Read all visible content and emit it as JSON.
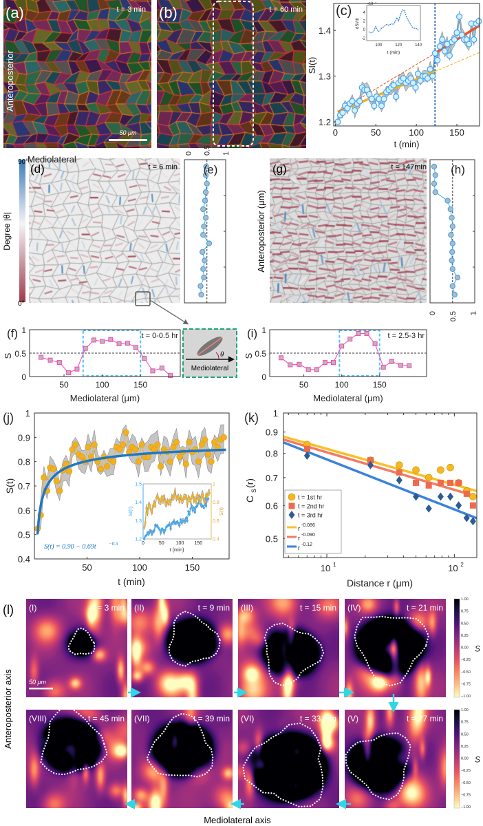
{
  "figure": {
    "a": {
      "label": "(a)",
      "time": "t = 3 min",
      "side_label": "Anteroposterior",
      "scale_bar": "50 μm"
    },
    "b": {
      "label": "(b)",
      "time": "t = 60 min"
    },
    "bottom_label": "Mediolateral",
    "d": {
      "label": "(d)",
      "time": "t = 6 min",
      "cbar_max": "90°",
      "cbar_min": "0°",
      "cbar_label": "Degree |θ|"
    },
    "g": {
      "label": "(g)",
      "time": "t = 147min",
      "ylabel": "Anteroposterior (μm)"
    },
    "inset": {
      "label": "Mediolateral",
      "angle": "θ"
    },
    "colors": {
      "accent_blue": "#3fa9f5",
      "fit_blue": "#1f77c4",
      "orange": "#f2b01e",
      "red": "#e8552a",
      "magenta": "#ff3fb4",
      "navy": "#2b4f86"
    }
  },
  "panel_l": {
    "label": "(l)",
    "ylabel": "Anteroposterior axis",
    "xlabel": "Mediolateral axis",
    "scale_bar": "50 μm",
    "colorbar_label": "S",
    "colorbar_ticks": [
      "1.00",
      "0.75",
      "0.50",
      "0.25",
      "0.00",
      "−0.25",
      "−0.50",
      "−0.75",
      "−1.00"
    ],
    "maps": [
      {
        "label": "(I)",
        "time": "t = 3 min"
      },
      {
        "label": "(II)",
        "time": "t = 9 min"
      },
      {
        "label": "(III)",
        "time": "t = 15 min"
      },
      {
        "label": "(IV)",
        "time": "t = 21 min"
      },
      {
        "label": "(V)",
        "time": "t = 27 min"
      },
      {
        "label": "(VI)",
        "time": "t = 33 min"
      },
      {
        "label": "(VII)",
        "time": "t = 39 min"
      },
      {
        "label": "(VIII)",
        "time": "t = 45 min"
      }
    ]
  },
  "chart_data": [
    {
      "panel": "(c)",
      "type": "line",
      "xlabel": "t (min)",
      "ylabel": "SI(t)",
      "xlim": [
        -2,
        178
      ],
      "ylim": [
        1.191,
        1.459
      ],
      "xticks": [
        "0",
        "50",
        "100",
        "150"
      ],
      "xtick_values": [
        0,
        50,
        100,
        150
      ],
      "yticks": [
        "1.2",
        "1.3",
        "1.4"
      ],
      "ytick_values": [
        1.2,
        1.3,
        1.4
      ],
      "change_point": 123,
      "x": [
        3,
        6,
        9,
        12,
        15,
        18,
        21,
        24,
        27,
        30,
        33,
        36,
        39,
        42,
        45,
        48,
        51,
        54,
        57,
        60,
        63,
        66,
        69,
        72,
        75,
        78,
        81,
        84,
        87,
        90,
        93,
        96,
        99,
        102,
        105,
        108,
        111,
        114,
        117,
        120,
        123,
        126,
        129,
        132,
        135,
        138,
        141,
        144,
        147,
        150,
        153,
        156,
        159,
        162,
        165,
        168,
        171,
        174,
        177
      ],
      "values": [
        1.2,
        1.215,
        1.22,
        1.235,
        1.23,
        1.24,
        1.245,
        1.225,
        1.24,
        1.245,
        1.275,
        1.27,
        1.27,
        1.26,
        1.25,
        1.235,
        1.255,
        1.25,
        1.235,
        1.25,
        1.265,
        1.27,
        1.275,
        1.28,
        1.255,
        1.285,
        1.29,
        1.295,
        1.285,
        1.29,
        1.295,
        1.285,
        1.275,
        1.305,
        1.29,
        1.3,
        1.3,
        1.295,
        1.315,
        1.3,
        1.35,
        1.335,
        1.365,
        1.38,
        1.355,
        1.37,
        1.345,
        1.375,
        1.38,
        1.395,
        1.43,
        1.39,
        1.38,
        1.38,
        1.37,
        1.415,
        1.38,
        1.415,
        1.42
      ],
      "fits": [
        {
          "name": "fit-before",
          "from": [
            3,
            1.222
          ],
          "to": [
            123,
            1.31
          ],
          "color": "#f2b01e",
          "dashed": false
        },
        {
          "name": "fit-before-extrapolated",
          "from": [
            123,
            1.31
          ],
          "to": [
            178,
            1.352
          ],
          "color": "#f2b01e",
          "dashed": true
        },
        {
          "name": "fit-after",
          "from": [
            123,
            1.35
          ],
          "to": [
            178,
            1.411
          ],
          "color": "#e8552a",
          "dashed": false
        },
        {
          "name": "fit-after-extrapolated",
          "from": [
            3,
            1.222
          ],
          "to": [
            123,
            1.35
          ],
          "color": "#e8552a",
          "dashed": true
        }
      ]
    },
    {
      "panel": "(c) inset",
      "type": "line",
      "xlabel": "t (min)",
      "ylabel": "dSI/dt",
      "multiplier": "×10⁻³",
      "xlim": [
        88,
        142
      ],
      "ylim": [
        -2.6,
        5.6
      ],
      "xticks": [
        "100",
        "120",
        "140"
      ],
      "xtick_values": [
        100,
        120,
        140
      ],
      "yticks": [
        "-2",
        "0",
        "2",
        "4"
      ],
      "ytick_values": [
        -2,
        0,
        2,
        4
      ],
      "x": [
        90,
        92,
        95,
        97,
        99,
        100,
        103,
        106,
        108,
        110,
        113,
        115,
        117,
        118,
        120,
        122,
        124,
        126,
        128,
        130,
        132,
        134,
        136,
        138,
        140
      ],
      "values": [
        -0.5,
        -0.8,
        -0.5,
        0.7,
        -0.2,
        -0.5,
        0.3,
        0.8,
        1.2,
        1.0,
        1.3,
        1.2,
        2.0,
        2.8,
        2.0,
        3.5,
        4.6,
        4.3,
        3.0,
        2.0,
        1.2,
        0.5,
        0.3,
        0.2,
        -0.2
      ]
    },
    {
      "panel": "(e)",
      "type": "line",
      "orientation": "vertical",
      "xlim": [
        -0.1,
        1.0
      ],
      "xticks": [
        "0",
        "0.5",
        "1"
      ],
      "xtick_values": [
        0,
        0.5,
        1
      ],
      "reference": 0.5,
      "values": [
        0.48,
        0.47,
        0.5,
        0.47,
        0.45,
        0.4,
        0.47,
        0.42,
        0.4,
        0.56,
        0.38,
        0.44,
        0.4,
        0.42,
        0.33,
        0.35
      ]
    },
    {
      "panel": "(f)",
      "type": "line",
      "annotation": "t = 0-0.5 hr",
      "xlabel": "Mediolateral (μm)",
      "ylabel": "S",
      "xlim": [
        5,
        202
      ],
      "ylim": [
        0,
        1
      ],
      "xticks": [
        "50",
        "100",
        "150"
      ],
      "xtick_values": [
        50,
        100,
        150
      ],
      "yticks": [
        "0",
        "0.5",
        "1"
      ],
      "ytick_values": [
        0,
        0.5,
        1
      ],
      "reference": 0.5,
      "highlight": [
        75,
        150
      ],
      "x": [
        20,
        32,
        44,
        56,
        67,
        78,
        89,
        100,
        111,
        122,
        133,
        144,
        155,
        166,
        178,
        189
      ],
      "values": [
        0.41,
        0.35,
        0.3,
        0.08,
        0.16,
        0.6,
        0.78,
        0.75,
        0.79,
        0.7,
        0.71,
        0.62,
        0.39,
        0.12,
        0.18,
        0.02
      ]
    },
    {
      "panel": "(h)",
      "type": "line",
      "orientation": "vertical",
      "xlim": [
        -0.05,
        1.04
      ],
      "xticks": [
        "0",
        "0.5",
        "1"
      ],
      "xtick_values": [
        0,
        0.5,
        1
      ],
      "reference": 0.5,
      "values": [
        0.05,
        0.08,
        0.05,
        0.08,
        0.38,
        0.45,
        0.48,
        0.5,
        0.46,
        0.5,
        0.49,
        0.48,
        0.5,
        0.62,
        0.5,
        0.55
      ]
    },
    {
      "panel": "(i)",
      "type": "line",
      "annotation": "t = 2.5-3 hr",
      "xlabel": "Mediolateral (μm)",
      "ylabel": "S",
      "xlim": [
        5,
        212
      ],
      "ylim": [
        0,
        1
      ],
      "xticks": [
        "50",
        "100",
        "150"
      ],
      "xtick_values": [
        50,
        100,
        150
      ],
      "yticks": [
        "0",
        "0.5",
        "1"
      ],
      "ytick_values": [
        0,
        0.5,
        1
      ],
      "reference": 0.5,
      "highlight": [
        97,
        150
      ],
      "x": [
        20,
        32,
        44,
        56,
        67,
        78,
        89,
        100,
        111,
        122,
        133,
        144,
        155,
        166,
        178,
        189
      ],
      "values": [
        0.4,
        0.25,
        0.26,
        0.15,
        0.15,
        0.3,
        0.3,
        0.65,
        0.8,
        0.92,
        0.92,
        0.7,
        0.2,
        0.32,
        0.24,
        0.23
      ]
    },
    {
      "panel": "(j)",
      "type": "line",
      "xlabel": "t (min)",
      "ylabel": "S(t)",
      "xlim": [
        0,
        185
      ],
      "ylim": [
        0.4,
        1.0
      ],
      "xticks": [
        "50",
        "100",
        "150"
      ],
      "xtick_values": [
        50,
        100,
        150
      ],
      "yticks": [
        "0.4",
        "0.5",
        "0.6",
        "0.7",
        "0.8",
        "0.9",
        "1"
      ],
      "ytick_values": [
        0.4,
        0.5,
        0.6,
        0.7,
        0.8,
        0.9,
        1.0
      ],
      "fit_label": "S(t) = 0.90 − 0.69t",
      "fit_exponent_label": "−0.5",
      "fit": {
        "a": 0.9,
        "b": 0.69,
        "p": -0.5
      },
      "x": [
        3,
        6,
        9,
        12,
        15,
        18,
        21,
        24,
        27,
        30,
        33,
        36,
        39,
        42,
        45,
        48,
        51,
        54,
        57,
        60,
        63,
        66,
        69,
        72,
        75,
        78,
        81,
        84,
        87,
        90,
        93,
        96,
        99,
        102,
        105,
        108,
        111,
        114,
        117,
        120,
        123,
        126,
        129,
        132,
        135,
        138,
        141,
        144,
        147,
        150,
        153,
        156,
        159,
        162,
        165,
        168,
        171,
        174,
        177,
        180
      ],
      "values": [
        0.525,
        0.58,
        0.735,
        0.68,
        0.775,
        0.77,
        0.72,
        0.68,
        0.765,
        0.79,
        0.76,
        0.85,
        0.87,
        0.83,
        0.82,
        0.8,
        0.86,
        0.82,
        0.87,
        0.8,
        0.77,
        0.82,
        0.78,
        0.81,
        0.8,
        0.86,
        0.85,
        0.87,
        0.92,
        0.84,
        0.86,
        0.85,
        0.8,
        0.87,
        0.82,
        0.82,
        0.86,
        0.85,
        0.87,
        0.78,
        0.85,
        0.84,
        0.8,
        0.86,
        0.88,
        0.82,
        0.84,
        0.79,
        0.88,
        0.84,
        0.85,
        0.8,
        0.87,
        0.89,
        0.83,
        0.8,
        0.88,
        0.86,
        0.89,
        0.9
      ]
    },
    {
      "panel": "(j) inset",
      "type": "line",
      "xlabel": "t (min)",
      "ylabel_left": "SI(t)",
      "ylabel_right": "S(t)",
      "xlim": [
        0,
        185
      ],
      "ylim_left": [
        1.2,
        1.5
      ],
      "ylim_right": [
        0.4,
        1.0
      ],
      "xticks": [
        "0",
        "50",
        "100",
        "150"
      ],
      "xtick_values": [
        0,
        50,
        100,
        150
      ],
      "yticks_left": [
        "1.2",
        "1.3",
        "1.4",
        "1.5"
      ],
      "ytick_values_left": [
        1.2,
        1.3,
        1.4,
        1.5
      ],
      "yticks_right": [
        "0.4",
        "0.6",
        "0.8",
        "1"
      ],
      "ytick_values_right": [
        0.4,
        0.6,
        0.8,
        1.0
      ],
      "series": [
        {
          "name": "SI(t)",
          "source": "(c)",
          "color": "#3fa9f5"
        },
        {
          "name": "S(t)",
          "source": "(j)",
          "color": "#f2b01e"
        }
      ]
    },
    {
      "panel": "(k)",
      "type": "scatter",
      "xlabel": "Distance r (μm)",
      "ylabel": "C",
      "ylabel_sub": "S",
      "ylabel_suffix": "(r)",
      "xscale": "log",
      "yscale": "log",
      "xlim": [
        4.57,
        150
      ],
      "ylim": [
        0.45,
        1.0
      ],
      "xticks": [
        {
          "base": "10",
          "exp": "1",
          "value": 10
        },
        {
          "base": "10",
          "exp": "2",
          "value": 100
        }
      ],
      "yticks": [
        "0.5",
        "0.6",
        "0.7",
        "0.8",
        "0.9",
        "1"
      ],
      "ytick_values": [
        0.5,
        0.6,
        0.7,
        0.8,
        0.9,
        1.0
      ],
      "x": [
        7,
        22,
        37,
        50,
        63,
        78,
        93,
        108,
        125,
        140
      ],
      "series": [
        {
          "name": "t = 1st hr",
          "marker": "circle",
          "color": "#f6b81c",
          "values": [
            0.84,
            0.77,
            0.75,
            0.73,
            0.7,
            0.73,
            0.74,
            0.68,
            0.65,
            0.63
          ]
        },
        {
          "name": "t = 2nd hr",
          "marker": "square",
          "color": "#ee6a4c",
          "values": [
            0.82,
            0.77,
            0.72,
            0.68,
            0.67,
            0.68,
            0.68,
            0.68,
            0.64,
            0.6
          ]
        },
        {
          "name": "t = 3rd hr",
          "marker": "diamond",
          "color": "#2d5b94",
          "values": [
            0.79,
            0.75,
            0.69,
            0.63,
            0.59,
            0.63,
            0.63,
            0.6,
            0.56,
            0.55
          ]
        }
      ],
      "fits": [
        {
          "label": "r",
          "exponent": "-0.086",
          "A": 1.0,
          "b": 0.086,
          "color": "#f7c02a"
        },
        {
          "label": "r",
          "exponent": "-0.090",
          "A": 0.99,
          "b": 0.09,
          "color": "#f47a64"
        },
        {
          "label": "r",
          "exponent": "-0.12",
          "A": 1.02,
          "b": 0.12,
          "color": "#3a82dc"
        }
      ],
      "legend": "bottom-left"
    }
  ]
}
